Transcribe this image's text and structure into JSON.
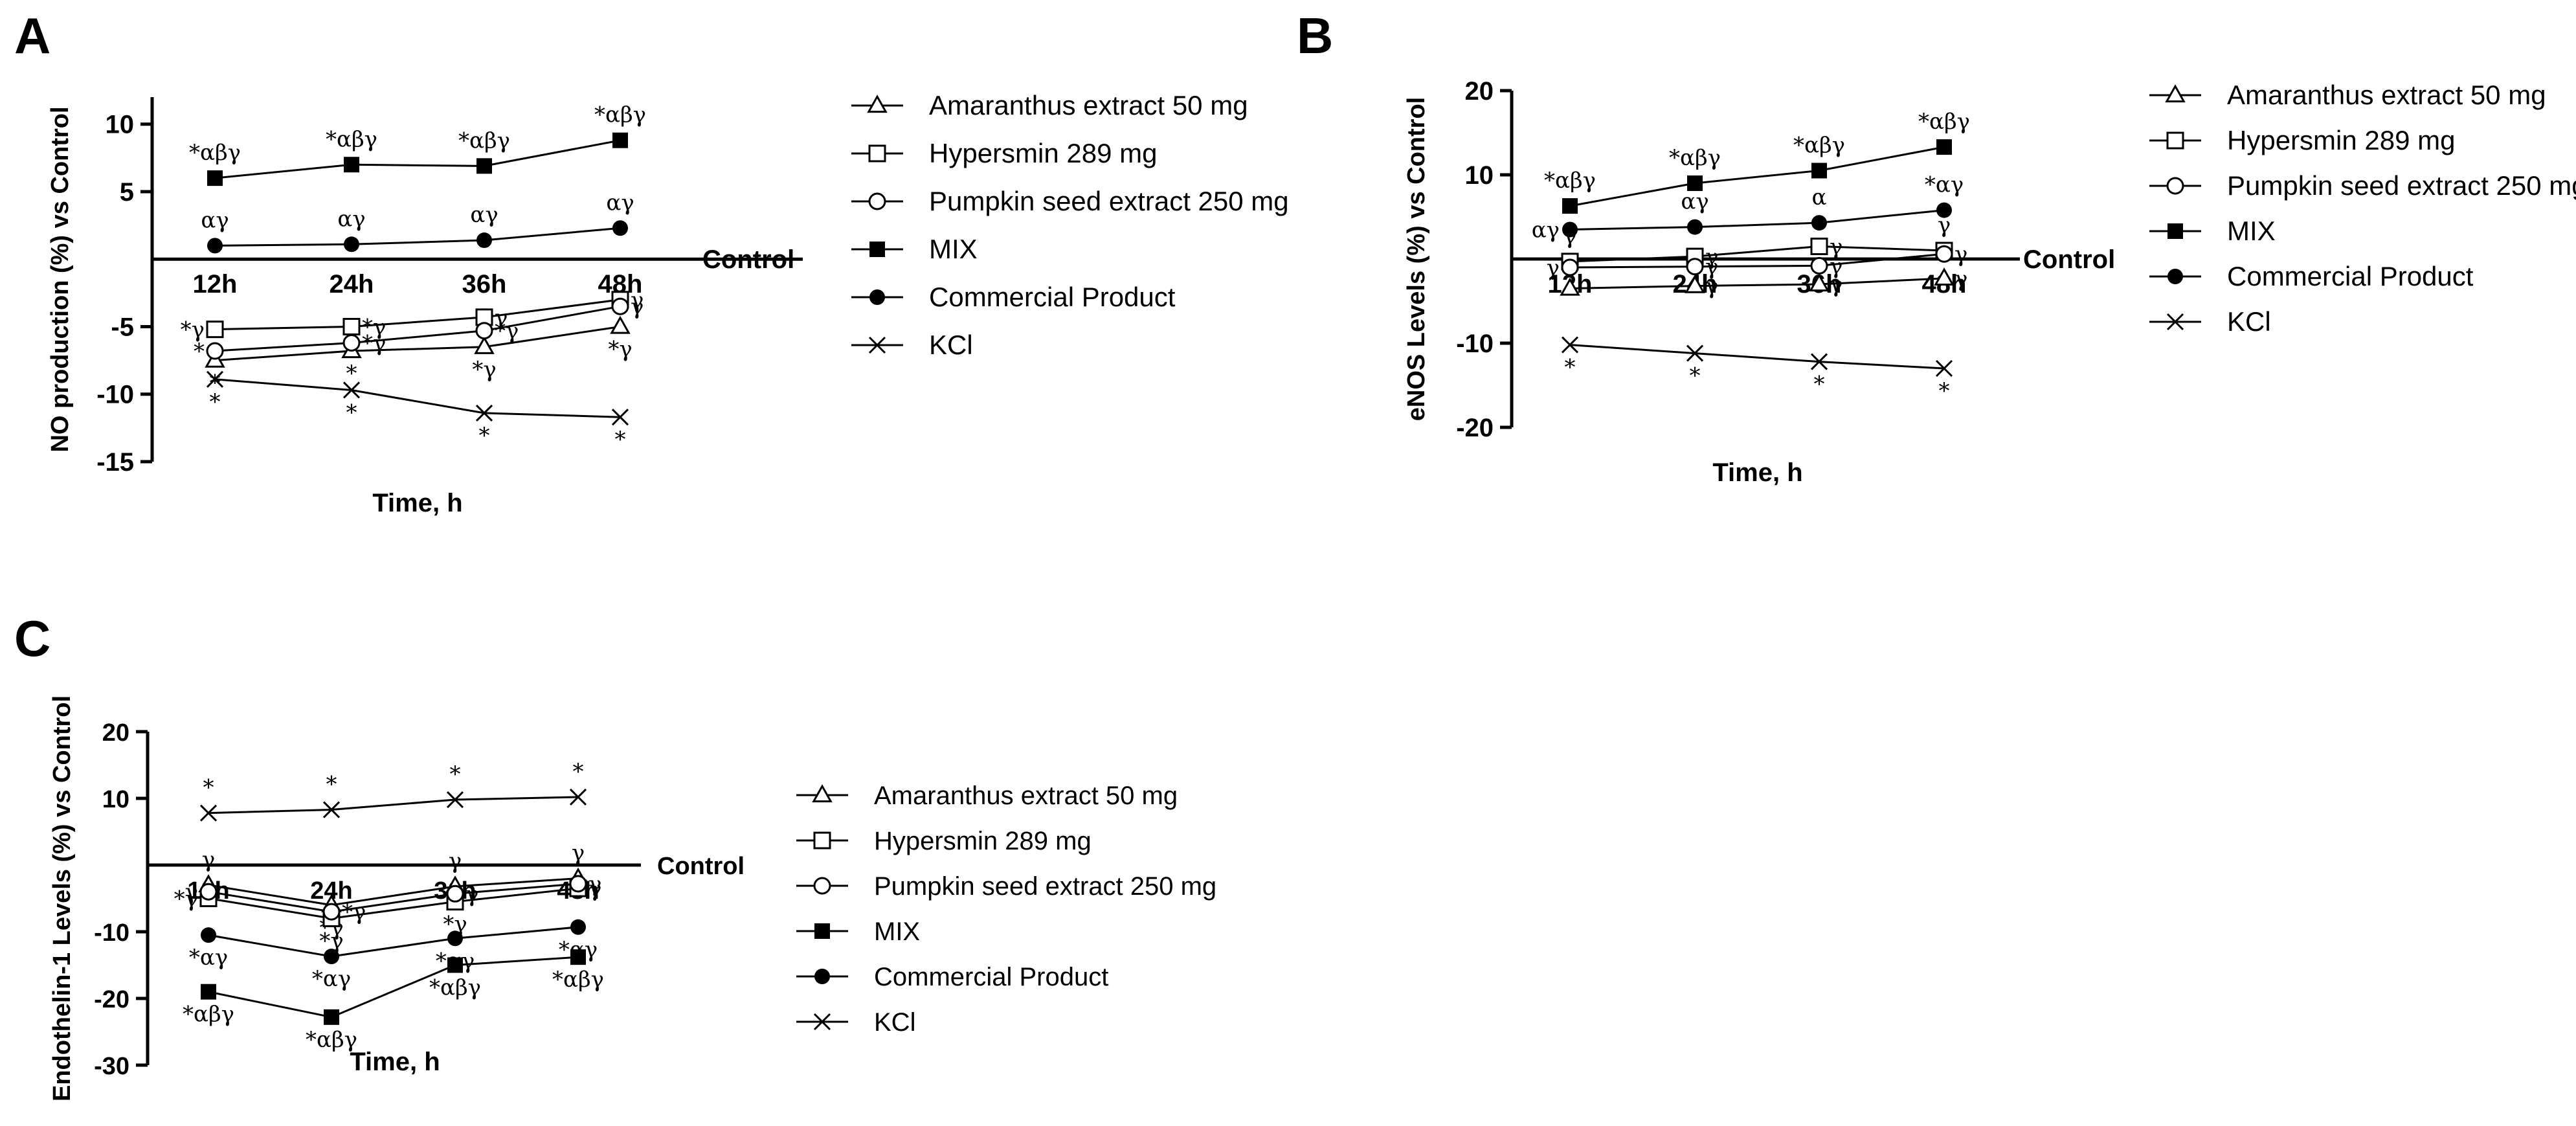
{
  "chart_data": [
    {
      "panel": "A",
      "type": "line",
      "categories": [
        "12h",
        "24h",
        "36h",
        "48h"
      ],
      "xlabel": "Time, h",
      "ylabel": "NO production (%) vs Control",
      "ylim": [
        -15,
        12
      ],
      "yticks": [
        10,
        5,
        -5,
        -10,
        -15
      ],
      "baseline_label": "Control",
      "series": [
        {
          "name": "Amaranthus extract 50 mg",
          "marker": "triangle-open",
          "values": [
            -7.5,
            -6.8,
            -6.5,
            -5.0
          ],
          "sig": [
            "*",
            "*",
            "*γ",
            "*γ"
          ]
        },
        {
          "name": "Hypersmin 289 mg",
          "marker": "square-open",
          "values": [
            -5.2,
            -5.0,
            -4.3,
            -3.0
          ],
          "sig": [
            "*γ",
            "*γ",
            "γ",
            "γ"
          ]
        },
        {
          "name": "Pumpkin seed extract 250 mg",
          "marker": "circle-open",
          "values": [
            -6.8,
            -6.2,
            -5.3,
            -3.5
          ],
          "sig": [
            "*",
            "*γ",
            "*γ",
            "γ"
          ]
        },
        {
          "name": "MIX",
          "marker": "square-filled",
          "values": [
            6.0,
            7.0,
            6.9,
            8.8
          ],
          "sig": [
            "*αβγ",
            "*αβγ",
            "*αβγ",
            "*αβγ"
          ]
        },
        {
          "name": "Commercial Product",
          "marker": "circle-filled",
          "values": [
            1.0,
            1.1,
            1.4,
            2.3
          ],
          "sig": [
            "αγ",
            "αγ",
            "αγ",
            "αγ"
          ]
        },
        {
          "name": "KCl",
          "marker": "x",
          "values": [
            -8.9,
            -9.7,
            -11.4,
            -11.7
          ],
          "sig": [
            "*",
            "*",
            "*",
            "*"
          ]
        }
      ]
    },
    {
      "panel": "B",
      "type": "line",
      "categories": [
        "12h",
        "24h",
        "36h",
        "48h"
      ],
      "xlabel": "Time, h",
      "ylabel": "eNOS Levels (%) vs Control",
      "ylim": [
        -20,
        20
      ],
      "yticks": [
        20,
        10,
        -10,
        -20
      ],
      "baseline_label": "Control",
      "series": [
        {
          "name": "Amaranthus extract 50 mg",
          "marker": "triangle-open",
          "values": [
            -3.5,
            -3.2,
            -3.0,
            -2.3
          ],
          "sig": [
            "",
            "γ",
            "γ",
            "γ"
          ]
        },
        {
          "name": "Hypersmin 289 mg",
          "marker": "square-open",
          "values": [
            -0.3,
            0.3,
            1.5,
            1.0
          ],
          "sig": [
            "γ",
            "γ",
            "γ",
            "γ"
          ]
        },
        {
          "name": "Pumpkin seed extract 250 mg",
          "marker": "circle-open",
          "values": [
            -1.0,
            -0.9,
            -0.8,
            0.6
          ],
          "sig": [
            "γ",
            "γ",
            "γ",
            "γ"
          ]
        },
        {
          "name": "MIX",
          "marker": "square-filled",
          "values": [
            6.3,
            9.0,
            10.5,
            13.3
          ],
          "sig": [
            "*αβγ",
            "*αβγ",
            "*αβγ",
            "*αβγ"
          ]
        },
        {
          "name": "Commercial Product",
          "marker": "circle-filled",
          "values": [
            3.5,
            3.8,
            4.3,
            5.8
          ],
          "sig": [
            "αγ",
            "αγ",
            "α",
            "*αγ"
          ]
        },
        {
          "name": "KCl",
          "marker": "x",
          "values": [
            -10.2,
            -11.2,
            -12.2,
            -13.0
          ],
          "sig": [
            "*",
            "*",
            "*",
            "*"
          ]
        }
      ]
    },
    {
      "panel": "C",
      "type": "line",
      "categories": [
        "12h",
        "24h",
        "36h",
        "48h"
      ],
      "xlabel": "Time, h",
      "ylabel": "Endothelin-1 Levels (%) vs Control",
      "ylim": [
        -30,
        20
      ],
      "yticks": [
        20,
        10,
        -10,
        -20,
        -30
      ],
      "baseline_label": "Control",
      "series": [
        {
          "name": "Amaranthus extract 50 mg",
          "marker": "triangle-open",
          "values": [
            -3.0,
            -6.0,
            -3.2,
            -2.0
          ],
          "sig": [
            "γ",
            "*γ",
            "γ",
            "γ"
          ]
        },
        {
          "name": "Hypersmin 289 mg",
          "marker": "square-open",
          "values": [
            -5.0,
            -8.0,
            -5.5,
            -3.5
          ],
          "sig": [
            "*γ",
            "*γ",
            "*γ",
            "γ"
          ]
        },
        {
          "name": "Pumpkin seed extract 250 mg",
          "marker": "circle-open",
          "values": [
            -4.0,
            -7.0,
            -4.3,
            -2.8
          ],
          "sig": [
            "γ",
            "*γ",
            "γ",
            "γ"
          ]
        },
        {
          "name": "MIX",
          "marker": "square-filled",
          "values": [
            -19.0,
            -22.8,
            -15.0,
            -13.8
          ],
          "sig": [
            "*αβγ",
            "*αβγ",
            "*αβγ",
            "*αβγ"
          ]
        },
        {
          "name": "Commercial Product",
          "marker": "circle-filled",
          "values": [
            -10.5,
            -13.7,
            -11.0,
            -9.3
          ],
          "sig": [
            "*αγ",
            "*αγ",
            "*αγ",
            "*αγ"
          ]
        },
        {
          "name": "KCl",
          "marker": "x",
          "values": [
            7.8,
            8.3,
            9.8,
            10.2
          ],
          "sig": [
            "*",
            "*",
            "*",
            "*"
          ]
        }
      ]
    }
  ]
}
